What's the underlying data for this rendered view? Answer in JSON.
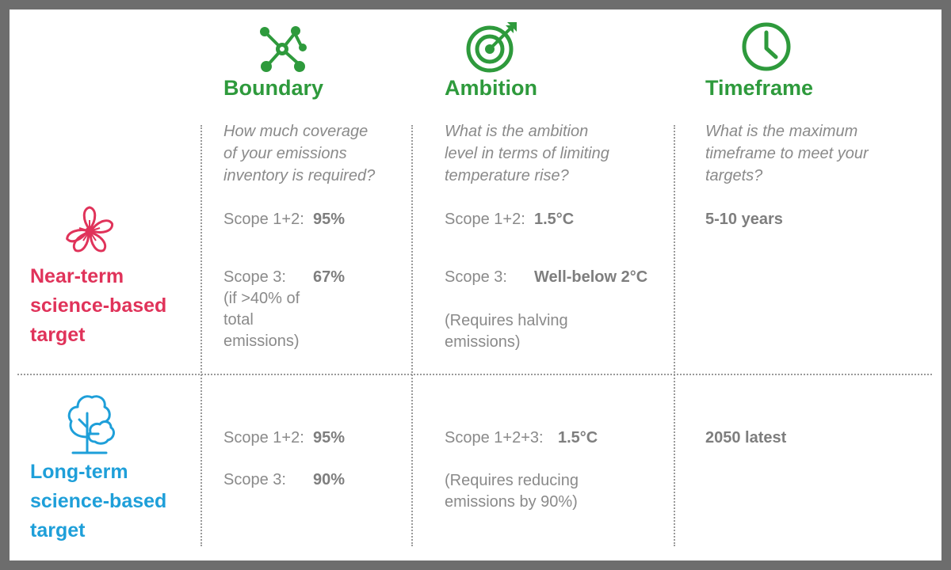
{
  "columns": {
    "boundary": {
      "icon": "network-nodes-icon",
      "title": "Boundary",
      "question_lines": [
        "How much coverage",
        "of your emissions",
        "inventory is required?"
      ]
    },
    "ambition": {
      "icon": "target-arrow-icon",
      "title": "Ambition",
      "question_lines": [
        "What is the ambition",
        "level in terms of limiting",
        "temperature rise?"
      ]
    },
    "timeframe": {
      "icon": "clock-icon",
      "title": "Timeframe",
      "question_lines": [
        "What is the maximum",
        "timeframe to meet your",
        "targets?"
      ]
    }
  },
  "rows": {
    "near_term": {
      "icon": "flower-icon",
      "label_lines": [
        "Near-term",
        "science-based",
        "target"
      ],
      "color": "#e0335a",
      "boundary": {
        "scope12_label": "Scope 1+2:",
        "scope12_value": "95%",
        "scope3_label": "Scope 3:",
        "scope3_value": "67%",
        "scope3_note_lines": [
          "(if >40% of",
          "total",
          "emissions)"
        ]
      },
      "ambition": {
        "scope12_label": "Scope 1+2:",
        "scope12_value": "1.5°C",
        "scope3_label": "Scope 3:",
        "scope3_value": "Well-below 2°C",
        "note_lines": [
          "(Requires halving",
          "emissions)"
        ]
      },
      "timeframe": {
        "value": "5-10 years"
      }
    },
    "long_term": {
      "icon": "tree-icon",
      "label_lines": [
        "Long-term",
        "science-based",
        "target"
      ],
      "color": "#1e9fd9",
      "boundary": {
        "scope12_label": "Scope 1+2:",
        "scope12_value": "95%",
        "scope3_label": "Scope 3:",
        "scope3_value": "90%"
      },
      "ambition": {
        "scope123_label": "Scope 1+2+3:",
        "scope123_value": "1.5°C",
        "note_lines": [
          "(Requires reducing",
          "emissions by 90%)"
        ]
      },
      "timeframe": {
        "value": "2050 latest"
      }
    }
  },
  "colors": {
    "header_green": "#2e9a3c",
    "near_term_red": "#e0335a",
    "long_term_blue": "#1e9fd9",
    "text_gray": "#8a8a8a",
    "frame_gray": "#6d6d6d"
  }
}
